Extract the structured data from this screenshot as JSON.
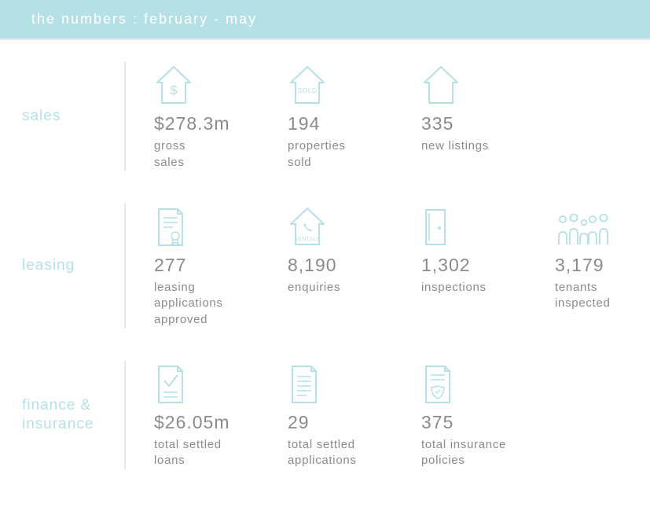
{
  "colors": {
    "accent": "#b5e0e6",
    "icon": "#b5e0e6",
    "text": "#8b8b8b",
    "header_text": "#ffffff",
    "divider": "#e6e6e6",
    "bg": "#ffffff"
  },
  "header": {
    "title": "the numbers : february - may"
  },
  "rows": [
    {
      "label": "sales",
      "metrics": [
        {
          "icon": "house-dollar",
          "value": "$278.3m",
          "caption": "gross\nsales"
        },
        {
          "icon": "house-sold",
          "value": "194",
          "caption": "properties\nsold"
        },
        {
          "icon": "house-plain",
          "value": "335",
          "caption": "new listings"
        }
      ]
    },
    {
      "label": "leasing",
      "metrics": [
        {
          "icon": "doc-seal",
          "value": "277",
          "caption": "leasing\napplications\napproved"
        },
        {
          "icon": "house-rentals",
          "value": "8,190",
          "caption": "enquiries"
        },
        {
          "icon": "door",
          "value": "1,302",
          "caption": "inspections"
        },
        {
          "icon": "people",
          "value": "3,179",
          "caption": "tenants\ninspected"
        }
      ]
    },
    {
      "label": "finance &\ninsurance",
      "metrics": [
        {
          "icon": "doc-check",
          "value": "$26.05m",
          "caption": "total settled\nloans"
        },
        {
          "icon": "doc-lines",
          "value": "29",
          "caption": "total settled\napplications"
        },
        {
          "icon": "doc-shield",
          "value": "375",
          "caption": "total insurance\npolicies"
        }
      ]
    }
  ]
}
